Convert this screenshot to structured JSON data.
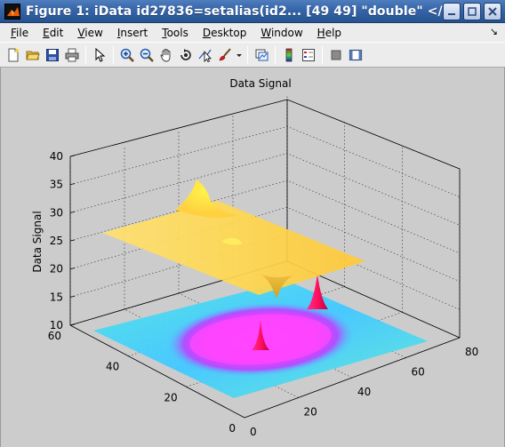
{
  "window": {
    "title": "Figure 1: iData id27836=setalias(id2... [49  49] \"double\" </ho"
  },
  "menu": {
    "items": [
      {
        "label_u": "F",
        "label_rest": "ile"
      },
      {
        "label_u": "E",
        "label_rest": "dit"
      },
      {
        "label_u": "V",
        "label_rest": "iew"
      },
      {
        "label_u": "I",
        "label_rest": "nsert"
      },
      {
        "label_u": "T",
        "label_rest": "ools"
      },
      {
        "label_u": "D",
        "label_rest": "esktop"
      },
      {
        "label_u": "W",
        "label_rest": "indow"
      },
      {
        "label_u": "H",
        "label_rest": "elp"
      }
    ],
    "dock_glyph": "↘"
  },
  "toolbar": {
    "icons": [
      "new-figure-icon",
      "open-file-icon",
      "save-icon",
      "print-icon",
      "select-arrow-icon",
      "zoom-in-icon",
      "zoom-out-icon",
      "pan-hand-icon",
      "rotate-3d-icon",
      "data-cursor-icon",
      "brush-icon",
      "brush-dropdown-icon",
      "link-plot-icon",
      "colorbar-icon",
      "legend-icon",
      "hide-plot-tools-icon",
      "show-plot-tools-icon"
    ]
  },
  "chart_data": {
    "type": "surface",
    "title": "Data Signal",
    "zlabel": "Data Signal",
    "xlim": [
      0,
      80
    ],
    "ylim": [
      0,
      60
    ],
    "zlim": [
      10,
      40
    ],
    "x_ticks": [
      "0",
      "20",
      "40",
      "60",
      "80"
    ],
    "y_ticks": [
      "0",
      "20",
      "40",
      "60"
    ],
    "z_ticks": [
      "10",
      "15",
      "20",
      "25",
      "30",
      "35",
      "40"
    ],
    "grid": true,
    "surfaces": [
      {
        "kind": "flat plane with one peak and one dip",
        "base_z": 22,
        "peak_z": 30,
        "dip_z": 14,
        "color": "#ffd840"
      },
      {
        "kind": "noisy floor with ring and two sharp peaks",
        "base_z": 10,
        "peak_z": 18,
        "colors": [
          "#40e0ff",
          "#ff40ff",
          "#ff2060"
        ]
      }
    ]
  }
}
